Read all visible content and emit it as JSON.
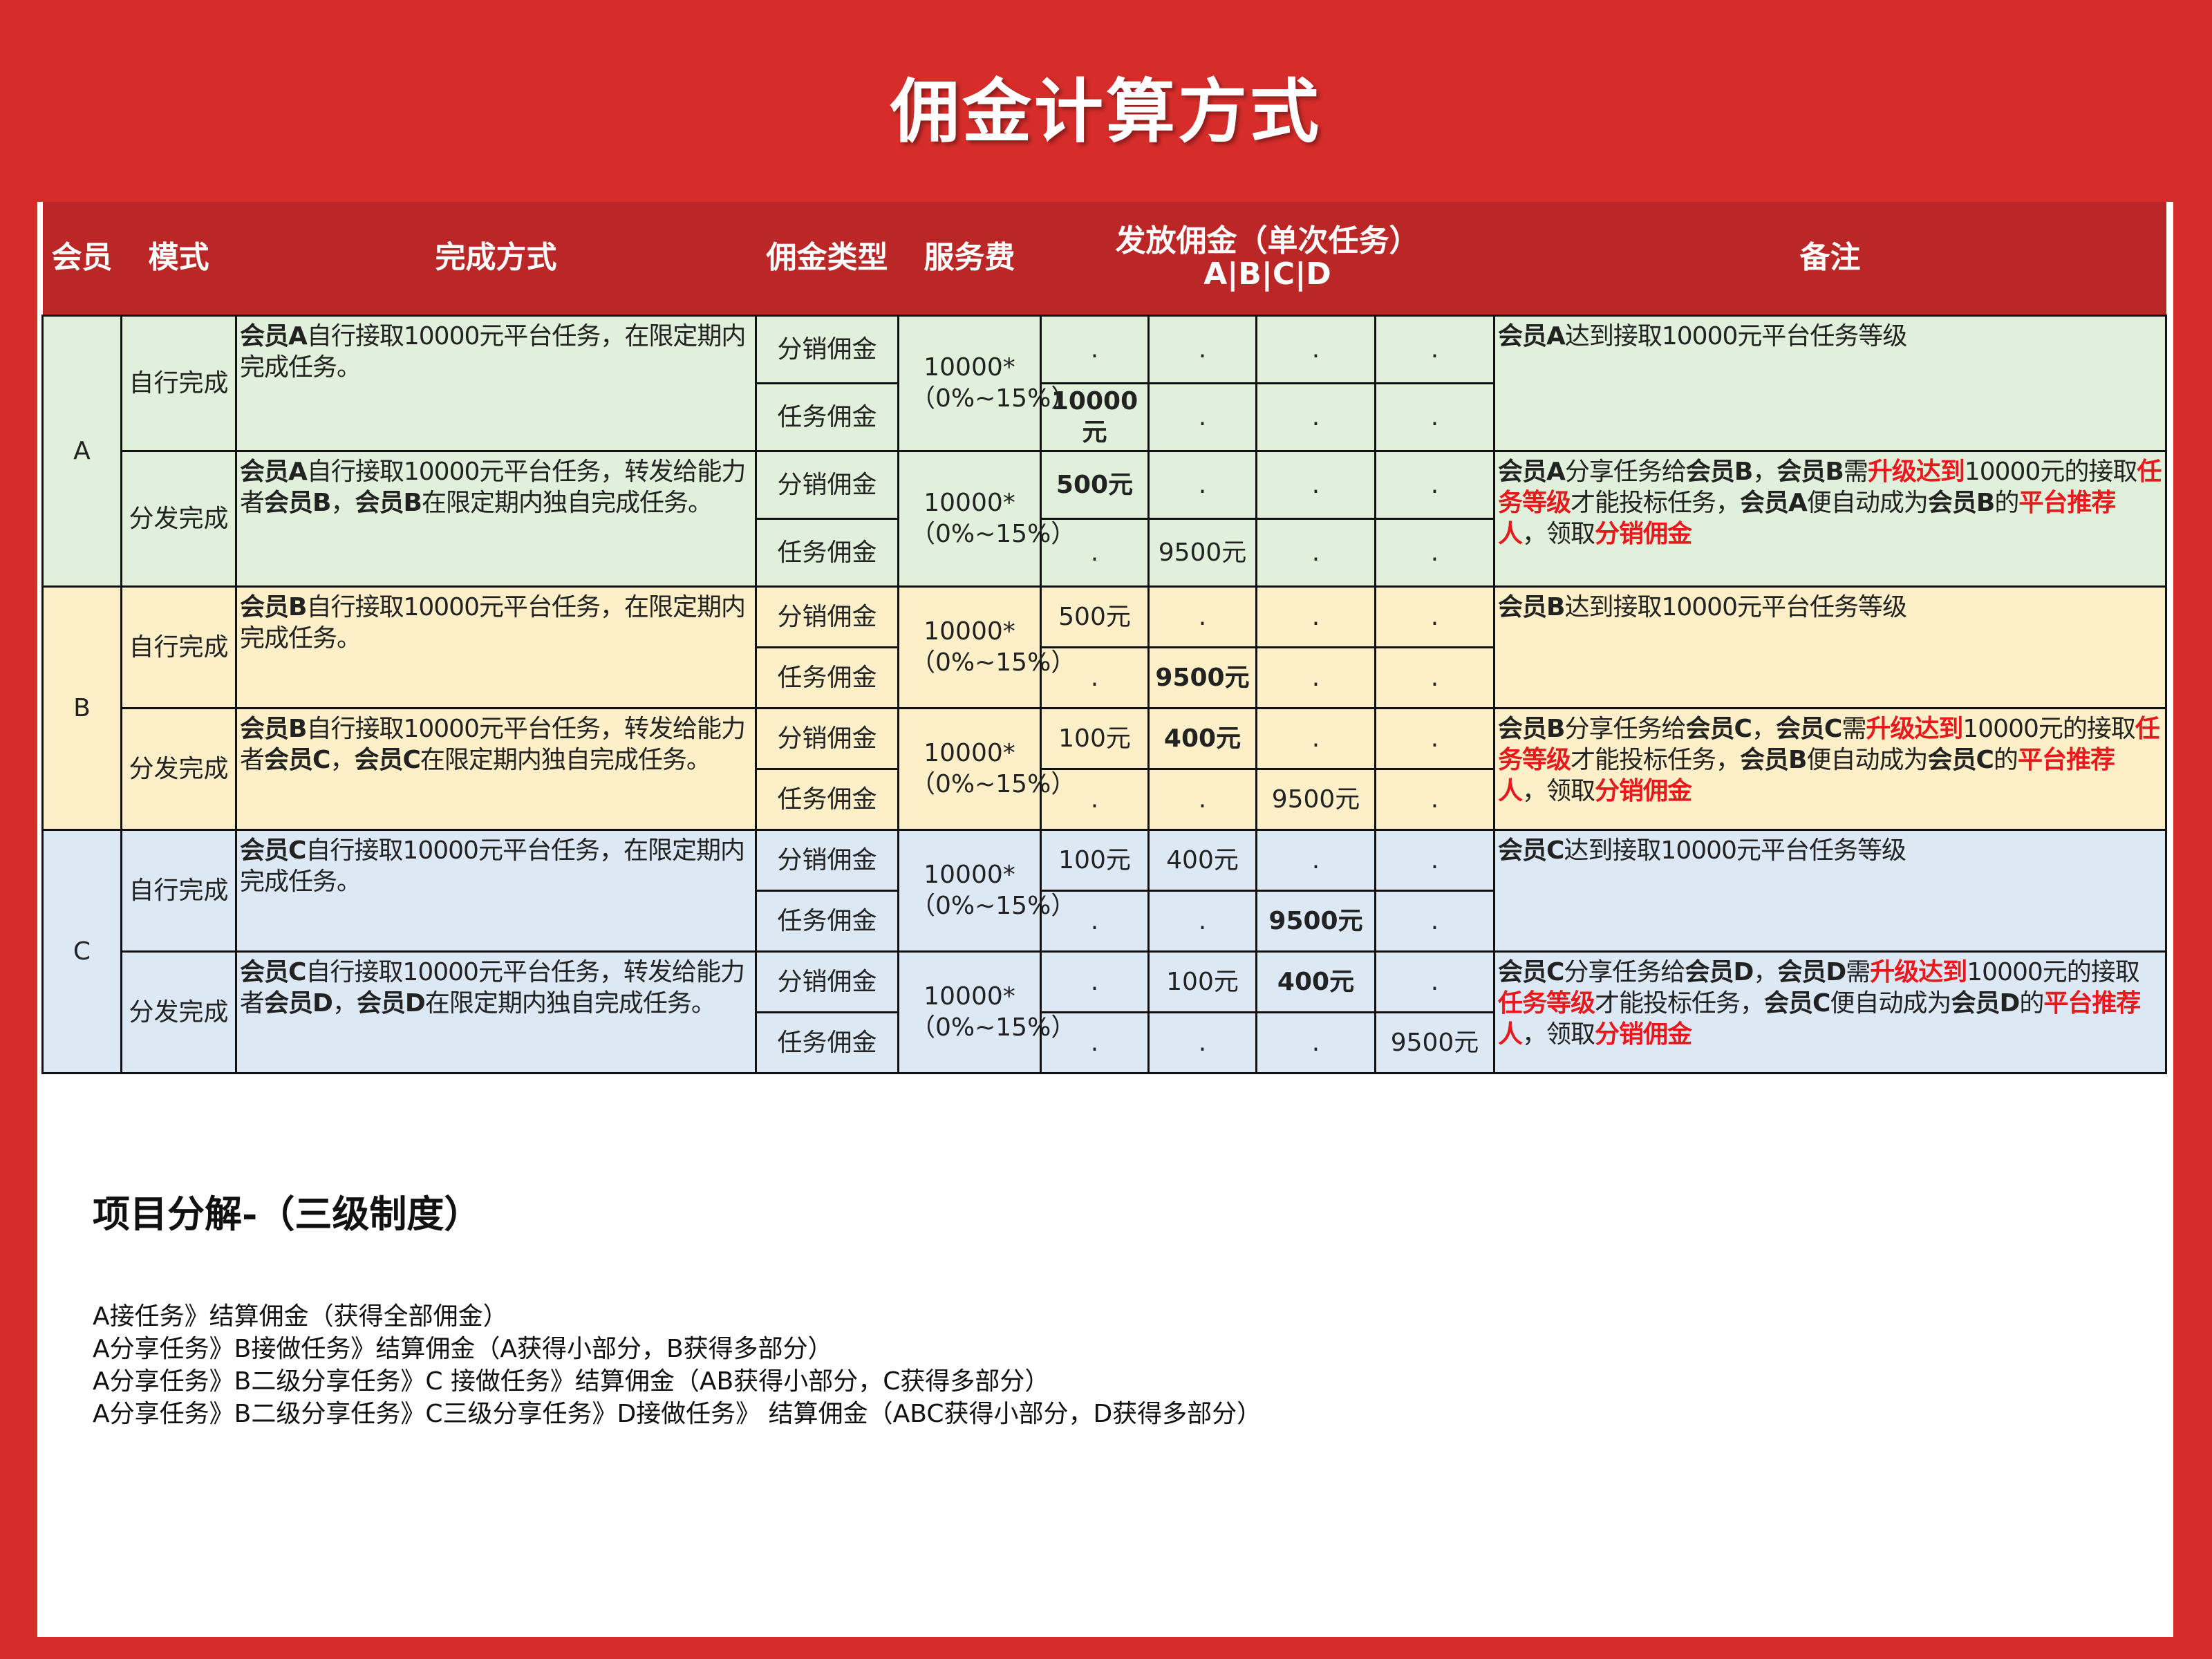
{
  "title": "佣金计算方式",
  "colors": {
    "background": "#d62d2a",
    "header": "#bb2726",
    "highlight": "#e8181c",
    "group_A": "#e0f0db",
    "group_B": "#fdf0c8",
    "group_C": "#dce9f5"
  },
  "table": {
    "headers": {
      "member": "会员",
      "mode": "模式",
      "method": "完成方式",
      "type": "佣金类型",
      "fee": "服务费",
      "payout": "发放佣金（单次任务）",
      "payout_sub": "A|B|C|D",
      "remark": "备注"
    },
    "groups": [
      {
        "member": "A",
        "rows": [
          {
            "mode": "自行完成",
            "method": [
              [
                "会员A",
                "b"
              ],
              [
                "自行接取10000元平台任务，在限定期内完成任务。",
                ""
              ]
            ],
            "fee": "10000*（0%~15%）",
            "lines": [
              {
                "type": "分销佣金",
                "values": [
                  ".",
                  ".",
                  ".",
                  "."
                ],
                "red": []
              },
              {
                "type": "任务佣金",
                "values": [
                  "10000元",
                  ".",
                  ".",
                  "."
                ],
                "red": [
                  0
                ]
              }
            ],
            "remark": [
              [
                "会员A",
                "b"
              ],
              [
                "达到接取10000元平台任务等级",
                ""
              ]
            ]
          },
          {
            "mode": "分发完成",
            "method": [
              [
                "会员A",
                "b"
              ],
              [
                "自行接取10000元平台任务，转发给能力者",
                ""
              ],
              [
                "会员B",
                "b"
              ],
              [
                "，",
                ""
              ],
              [
                "会员B",
                "b"
              ],
              [
                "在限定期内独自完成任务。",
                ""
              ]
            ],
            "fee": "10000*（0%~15%）",
            "lines": [
              {
                "type": "分销佣金",
                "values": [
                  "500元",
                  ".",
                  ".",
                  "."
                ],
                "red": [
                  0
                ]
              },
              {
                "type": "任务佣金",
                "values": [
                  ".",
                  "9500元",
                  ".",
                  "."
                ],
                "red": []
              }
            ],
            "remark": [
              [
                "会员A",
                "b"
              ],
              [
                "分享任务给",
                ""
              ],
              [
                "会员B",
                "b"
              ],
              [
                "，",
                ""
              ],
              [
                "会员B",
                "b"
              ],
              [
                "需",
                ""
              ],
              [
                "升级达到",
                "r"
              ],
              [
                "10000元的接取",
                ""
              ],
              [
                "任务等级",
                "r"
              ],
              [
                "才能投标任务，",
                ""
              ],
              [
                "会员A",
                "b"
              ],
              [
                "便自动成为",
                ""
              ],
              [
                "会员B",
                "b"
              ],
              [
                "的",
                ""
              ],
              [
                "平台推荐人",
                "r"
              ],
              [
                "，领取",
                ""
              ],
              [
                "分销佣金",
                "r"
              ]
            ]
          }
        ]
      },
      {
        "member": "B",
        "rows": [
          {
            "mode": "自行完成",
            "method": [
              [
                "会员B",
                "b"
              ],
              [
                "自行接取10000元平台任务，在限定期内完成任务。",
                ""
              ]
            ],
            "fee": "10000*（0%~15%）",
            "lines": [
              {
                "type": "分销佣金",
                "values": [
                  "500元",
                  ".",
                  ".",
                  "."
                ],
                "red": []
              },
              {
                "type": "任务佣金",
                "values": [
                  ".",
                  "9500元",
                  ".",
                  "."
                ],
                "red": [
                  1
                ]
              }
            ],
            "remark": [
              [
                "会员B",
                "b"
              ],
              [
                "达到接取10000元平台任务等级",
                ""
              ]
            ]
          },
          {
            "mode": "分发完成",
            "method": [
              [
                "会员B",
                "b"
              ],
              [
                "自行接取10000元平台任务，转发给能力者",
                ""
              ],
              [
                "会员C",
                "b"
              ],
              [
                "，",
                ""
              ],
              [
                "会员C",
                "b"
              ],
              [
                "在限定期内独自完成任务。",
                ""
              ]
            ],
            "fee": "10000*（0%~15%）",
            "lines": [
              {
                "type": "分销佣金",
                "values": [
                  "100元",
                  "400元",
                  ".",
                  "."
                ],
                "red": [
                  1
                ]
              },
              {
                "type": "任务佣金",
                "values": [
                  ".",
                  ".",
                  "9500元",
                  "."
                ],
                "red": []
              }
            ],
            "remark": [
              [
                "会员B",
                "b"
              ],
              [
                "分享任务给",
                ""
              ],
              [
                "会员C",
                "b"
              ],
              [
                "，",
                ""
              ],
              [
                "会员C",
                "b"
              ],
              [
                "需",
                ""
              ],
              [
                "升级达到",
                "r"
              ],
              [
                "10000元的接取",
                ""
              ],
              [
                "任务等级",
                "r"
              ],
              [
                "才能投标任务，",
                ""
              ],
              [
                "会员B",
                "b"
              ],
              [
                "便自动成为",
                ""
              ],
              [
                "会员C",
                "b"
              ],
              [
                "的",
                ""
              ],
              [
                "平台推荐人",
                "r"
              ],
              [
                "，领取",
                ""
              ],
              [
                "分销佣金",
                "r"
              ]
            ]
          }
        ]
      },
      {
        "member": "C",
        "rows": [
          {
            "mode": "自行完成",
            "method": [
              [
                "会员C",
                "b"
              ],
              [
                "自行接取10000元平台任务，在限定期内完成任务。",
                ""
              ]
            ],
            "fee": "10000*（0%~15%）",
            "lines": [
              {
                "type": "分销佣金",
                "values": [
                  "100元",
                  "400元",
                  ".",
                  "."
                ],
                "red": []
              },
              {
                "type": "任务佣金",
                "values": [
                  ".",
                  ".",
                  "9500元",
                  "."
                ],
                "red": [
                  2
                ]
              }
            ],
            "remark": [
              [
                "会员C",
                "b"
              ],
              [
                "达到接取10000元平台任务等级",
                ""
              ]
            ]
          },
          {
            "mode": "分发完成",
            "method": [
              [
                "会员C",
                "b"
              ],
              [
                "自行接取10000元平台任务，转发给能力者",
                ""
              ],
              [
                "会员D",
                "b"
              ],
              [
                "，",
                ""
              ],
              [
                "会员D",
                "b"
              ],
              [
                "在限定期内独自完成任务。",
                ""
              ]
            ],
            "fee": "10000*（0%~15%）",
            "lines": [
              {
                "type": "分销佣金",
                "values": [
                  ".",
                  "100元",
                  "400元",
                  "."
                ],
                "red": [
                  2
                ]
              },
              {
                "type": "任务佣金",
                "values": [
                  ".",
                  ".",
                  ".",
                  "9500元"
                ],
                "red": []
              }
            ],
            "remark": [
              [
                "会员C",
                "b"
              ],
              [
                "分享任务给",
                ""
              ],
              [
                "会员D",
                "b"
              ],
              [
                "，",
                ""
              ],
              [
                "会员D",
                "b"
              ],
              [
                "需",
                ""
              ],
              [
                "升级达到",
                "r"
              ],
              [
                "10000元的接取",
                ""
              ],
              [
                "任务等级",
                "r"
              ],
              [
                "才能投标任务，",
                ""
              ],
              [
                "会员C",
                "b"
              ],
              [
                "便自动成为",
                ""
              ],
              [
                "会员D",
                "b"
              ],
              [
                "的",
                ""
              ],
              [
                "平台推荐人",
                "r"
              ],
              [
                "，领取",
                ""
              ],
              [
                "分销佣金",
                "r"
              ]
            ]
          }
        ]
      }
    ]
  },
  "breakdown": {
    "title": "项目分解-（三级制度）",
    "lines": [
      "A接任务》结算佣金（获得全部佣金）",
      "A分享任务》B接做任务》结算佣金（A获得小部分，B获得多部分）",
      "A分享任务》B二级分享任务》C 接做任务》结算佣金（AB获得小部分，C获得多部分）",
      "A分享任务》B二级分享任务》C三级分享任务》D接做任务》 结算佣金（ABC获得小部分，D获得多部分）"
    ]
  }
}
